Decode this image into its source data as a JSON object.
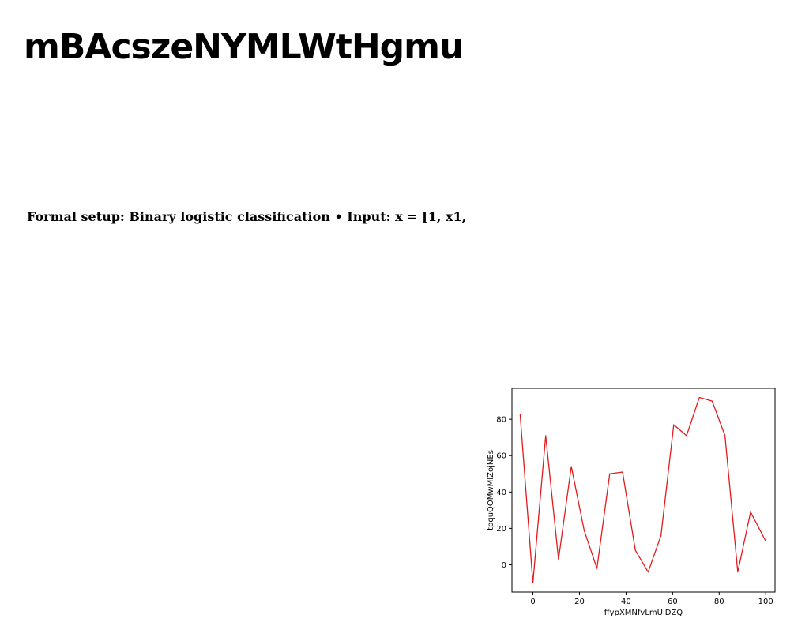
{
  "header": {
    "title": "mBAcszeNYMLWtHgmu"
  },
  "content": {
    "setup_text": "Formal setup: Binary logistic classification • Input: x = [1, x1,"
  },
  "chart_data": {
    "type": "line",
    "title": "",
    "xlabel": "ffypXMNfvLmUlDZQ",
    "ylabel": "tpquQOMwMIZojNEs",
    "xlim": [
      -9,
      104
    ],
    "ylim": [
      -15,
      97
    ],
    "xticks": [
      0,
      20,
      40,
      60,
      80,
      100
    ],
    "yticks": [
      0,
      20,
      40,
      60,
      80
    ],
    "grid": false,
    "series": [
      {
        "color": "#e41a1c",
        "x": [
          -5.5,
          0,
          5.5,
          11,
          16.5,
          22,
          27.5,
          33,
          38.5,
          44,
          49.5,
          55,
          60.5,
          66,
          71.5,
          77,
          82.5,
          88,
          93.5,
          100
        ],
        "y": [
          83,
          -10,
          71,
          3,
          54,
          19,
          -2,
          50,
          51,
          8,
          -4,
          16,
          77,
          71,
          92,
          90,
          71,
          -4,
          29,
          13
        ]
      }
    ]
  }
}
